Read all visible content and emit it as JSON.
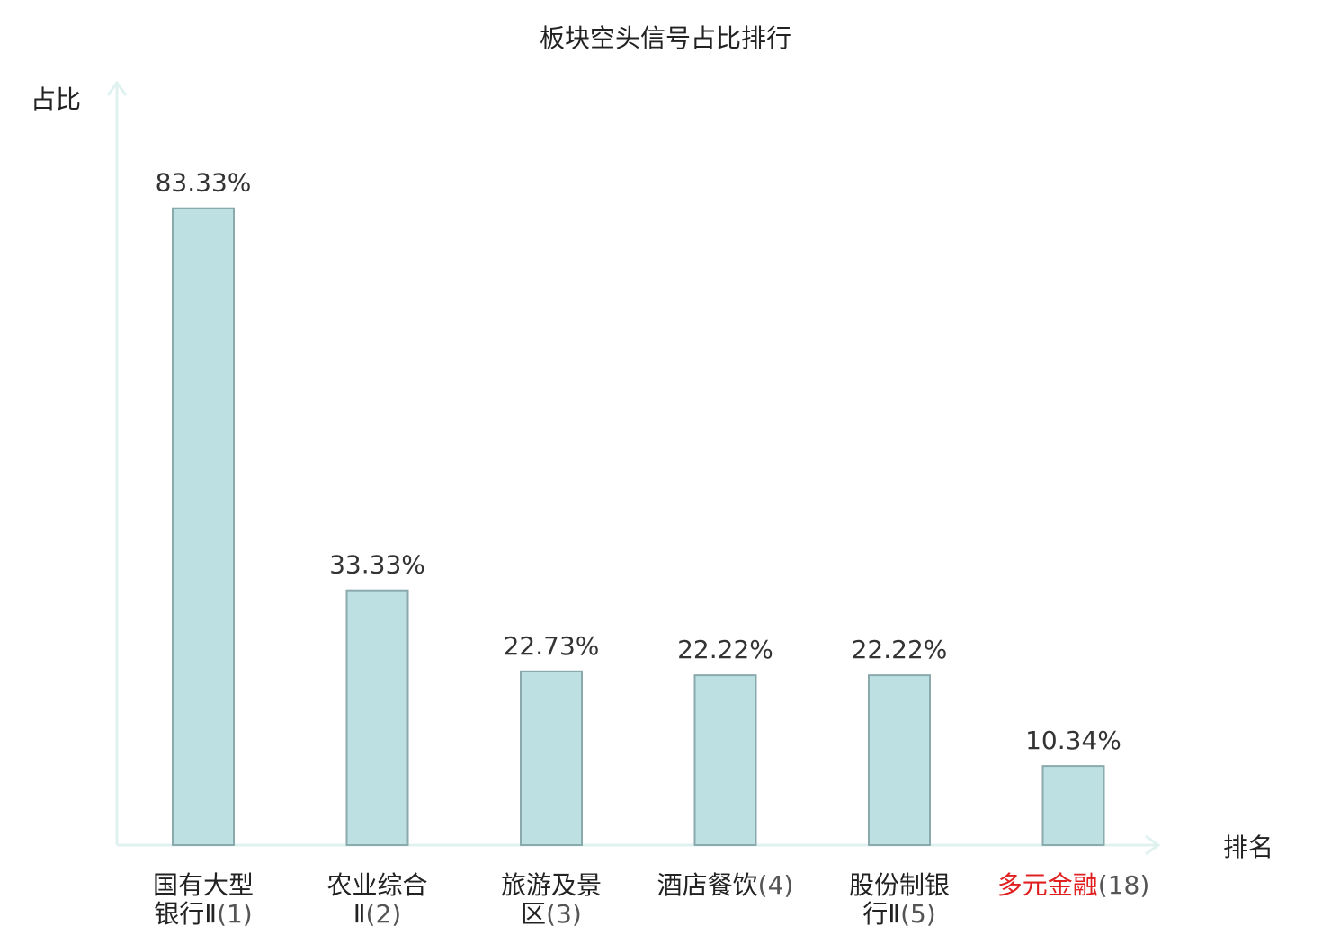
{
  "chart_data": {
    "type": "bar",
    "title": "板块空头信号占比排行",
    "ylabel": "占比",
    "xlabel": "排名",
    "categories": [
      {
        "name_lines": [
          "国有大型",
          "银行Ⅱ"
        ],
        "rank": "(1)",
        "highlight": false
      },
      {
        "name_lines": [
          "农业综合",
          "Ⅱ"
        ],
        "rank": "(2)",
        "highlight": false
      },
      {
        "name_lines": [
          "旅游及景",
          "区"
        ],
        "rank": "(3)",
        "highlight": false
      },
      {
        "name_lines": [
          "酒店餐饮"
        ],
        "rank": "(4)",
        "highlight": false
      },
      {
        "name_lines": [
          "股份制银",
          "行Ⅱ"
        ],
        "rank": "(5)",
        "highlight": false
      },
      {
        "name_lines": [
          "多元金融"
        ],
        "rank": "(18)",
        "highlight": true
      }
    ],
    "values": [
      83.33,
      33.33,
      22.73,
      22.22,
      22.22,
      10.34
    ],
    "value_labels": [
      "83.33%",
      "33.33%",
      "22.73%",
      "22.22%",
      "22.22%",
      "10.34%"
    ],
    "ylim": [
      0,
      100
    ],
    "grid": false,
    "colors": {
      "bar_fill": "#bde0e3",
      "bar_stroke": "#8aaaad",
      "axis": "#e0f2f0",
      "highlight_text": "#e02020"
    }
  }
}
